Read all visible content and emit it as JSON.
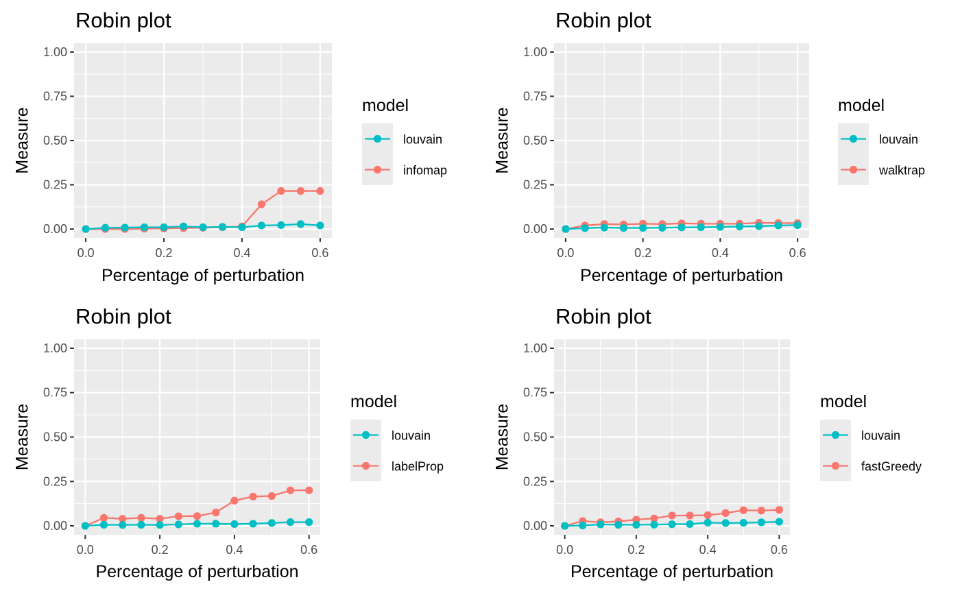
{
  "chart_data": [
    {
      "type": "line",
      "title": "Robin plot",
      "xlabel": "Percentage of perturbation",
      "ylabel": "Measure",
      "xlim": [
        -0.03,
        0.63
      ],
      "ylim": [
        -0.05,
        1.05
      ],
      "xticks": [
        0.0,
        0.2,
        0.4,
        0.6
      ],
      "xtick_labels": [
        "0.0",
        "0.2",
        "0.4",
        "0.6"
      ],
      "yticks": [
        0.0,
        0.25,
        0.5,
        0.75,
        1.0
      ],
      "ytick_labels": [
        "0.00",
        "0.25",
        "0.50",
        "0.75",
        "1.00"
      ],
      "grid": true,
      "legend": {
        "title": "model",
        "position": "right"
      },
      "x": [
        0,
        0.05,
        0.1,
        0.15,
        0.2,
        0.25,
        0.3,
        0.35,
        0.4,
        0.45,
        0.5,
        0.55,
        0.6
      ],
      "series": [
        {
          "name": "louvain",
          "color": "#00BFC4",
          "values": [
            0,
            0.007,
            0.008,
            0.01,
            0.01,
            0.015,
            0.01,
            0.012,
            0.01,
            0.02,
            0.022,
            0.028,
            0.02
          ]
        },
        {
          "name": "infomap",
          "color": "#F8766D",
          "values": [
            0,
            0.0,
            0.0,
            0.002,
            0.003,
            0.005,
            0.007,
            0.01,
            0.015,
            0.14,
            0.215,
            0.215,
            0.215
          ]
        }
      ]
    },
    {
      "type": "line",
      "title": "Robin plot",
      "xlabel": "Percentage of perturbation",
      "ylabel": "Measure",
      "xlim": [
        -0.03,
        0.63
      ],
      "ylim": [
        -0.05,
        1.05
      ],
      "xticks": [
        0.0,
        0.2,
        0.4,
        0.6
      ],
      "xtick_labels": [
        "0.0",
        "0.2",
        "0.4",
        "0.6"
      ],
      "yticks": [
        0.0,
        0.25,
        0.5,
        0.75,
        1.0
      ],
      "ytick_labels": [
        "0.00",
        "0.25",
        "0.50",
        "0.75",
        "1.00"
      ],
      "grid": true,
      "legend": {
        "title": "model",
        "position": "right"
      },
      "x": [
        0,
        0.05,
        0.1,
        0.15,
        0.2,
        0.25,
        0.3,
        0.35,
        0.4,
        0.45,
        0.5,
        0.55,
        0.6
      ],
      "series": [
        {
          "name": "louvain",
          "color": "#00BFC4",
          "values": [
            0,
            0.005,
            0.008,
            0.006,
            0.006,
            0.007,
            0.009,
            0.01,
            0.012,
            0.014,
            0.016,
            0.02,
            0.022
          ]
        },
        {
          "name": "walktrap",
          "color": "#F8766D",
          "values": [
            0,
            0.02,
            0.028,
            0.026,
            0.03,
            0.028,
            0.032,
            0.03,
            0.03,
            0.03,
            0.035,
            0.034,
            0.033
          ]
        }
      ]
    },
    {
      "type": "line",
      "title": "Robin plot",
      "xlabel": "Percentage of perturbation",
      "ylabel": "Measure",
      "xlim": [
        -0.03,
        0.63
      ],
      "ylim": [
        -0.05,
        1.05
      ],
      "xticks": [
        0.0,
        0.2,
        0.4,
        0.6
      ],
      "xtick_labels": [
        "0.0",
        "0.2",
        "0.4",
        "0.6"
      ],
      "yticks": [
        0.0,
        0.25,
        0.5,
        0.75,
        1.0
      ],
      "ytick_labels": [
        "0.00",
        "0.25",
        "0.50",
        "0.75",
        "1.00"
      ],
      "grid": true,
      "legend": {
        "title": "model",
        "position": "right"
      },
      "x": [
        0,
        0.05,
        0.1,
        0.15,
        0.2,
        0.25,
        0.3,
        0.35,
        0.4,
        0.45,
        0.5,
        0.55,
        0.6
      ],
      "series": [
        {
          "name": "louvain",
          "color": "#00BFC4",
          "values": [
            0,
            0.006,
            0.005,
            0.006,
            0.005,
            0.008,
            0.012,
            0.012,
            0.01,
            0.012,
            0.016,
            0.021,
            0.021
          ]
        },
        {
          "name": "labelProp",
          "color": "#F8766D",
          "values": [
            0,
            0.045,
            0.04,
            0.045,
            0.04,
            0.054,
            0.055,
            0.075,
            0.142,
            0.165,
            0.168,
            0.2,
            0.2
          ]
        }
      ]
    },
    {
      "type": "line",
      "title": "Robin plot",
      "xlabel": "Percentage of perturbation",
      "ylabel": "Measure",
      "xlim": [
        -0.03,
        0.63
      ],
      "ylim": [
        -0.05,
        1.05
      ],
      "xticks": [
        0.0,
        0.2,
        0.4,
        0.6
      ],
      "xtick_labels": [
        "0.0",
        "0.2",
        "0.4",
        "0.6"
      ],
      "yticks": [
        0.0,
        0.25,
        0.5,
        0.75,
        1.0
      ],
      "ytick_labels": [
        "0.00",
        "0.25",
        "0.50",
        "0.75",
        "1.00"
      ],
      "grid": true,
      "legend": {
        "title": "model",
        "position": "right"
      },
      "x": [
        0,
        0.05,
        0.1,
        0.15,
        0.2,
        0.25,
        0.3,
        0.35,
        0.4,
        0.45,
        0.5,
        0.55,
        0.6
      ],
      "series": [
        {
          "name": "louvain",
          "color": "#00BFC4",
          "values": [
            0,
            0.002,
            0.008,
            0.006,
            0.006,
            0.007,
            0.009,
            0.01,
            0.018,
            0.016,
            0.017,
            0.02,
            0.023
          ]
        },
        {
          "name": "fastGreedy",
          "color": "#F8766D",
          "values": [
            0,
            0.027,
            0.02,
            0.025,
            0.035,
            0.042,
            0.058,
            0.058,
            0.06,
            0.072,
            0.088,
            0.086,
            0.09
          ]
        }
      ]
    }
  ]
}
